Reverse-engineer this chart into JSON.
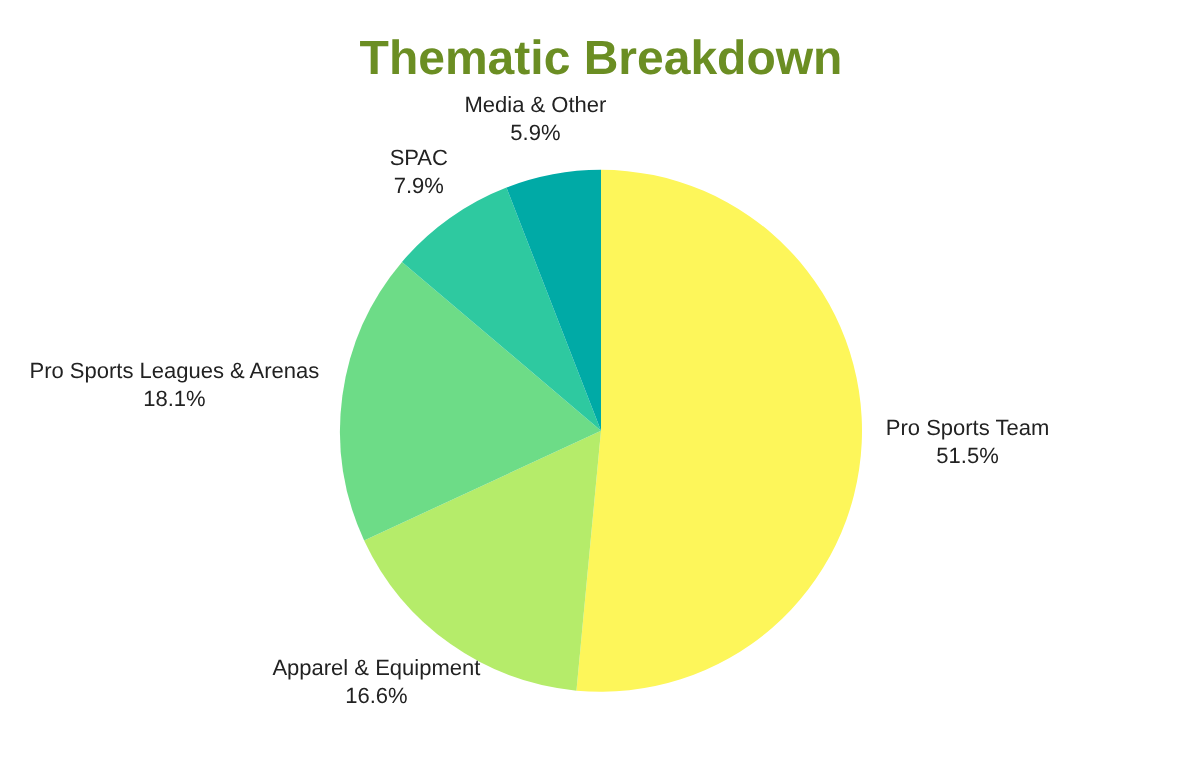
{
  "chart_data": {
    "type": "pie",
    "title": "Thematic Breakdown",
    "categories": [
      "Pro Sports Team",
      "Apparel & Equipment",
      "Pro Sports Leagues & Arenas",
      "SPAC",
      "Media & Other"
    ],
    "values": [
      51.5,
      16.6,
      18.1,
      7.9,
      5.9
    ],
    "colors": [
      "#fdf65a",
      "#b5ec6a",
      "#6ddc87",
      "#2ec9a0",
      "#00aaa6"
    ],
    "value_labels": [
      "51.5%",
      "16.6%",
      "18.1%",
      "7.9%",
      "5.9%"
    ],
    "legend": false
  }
}
